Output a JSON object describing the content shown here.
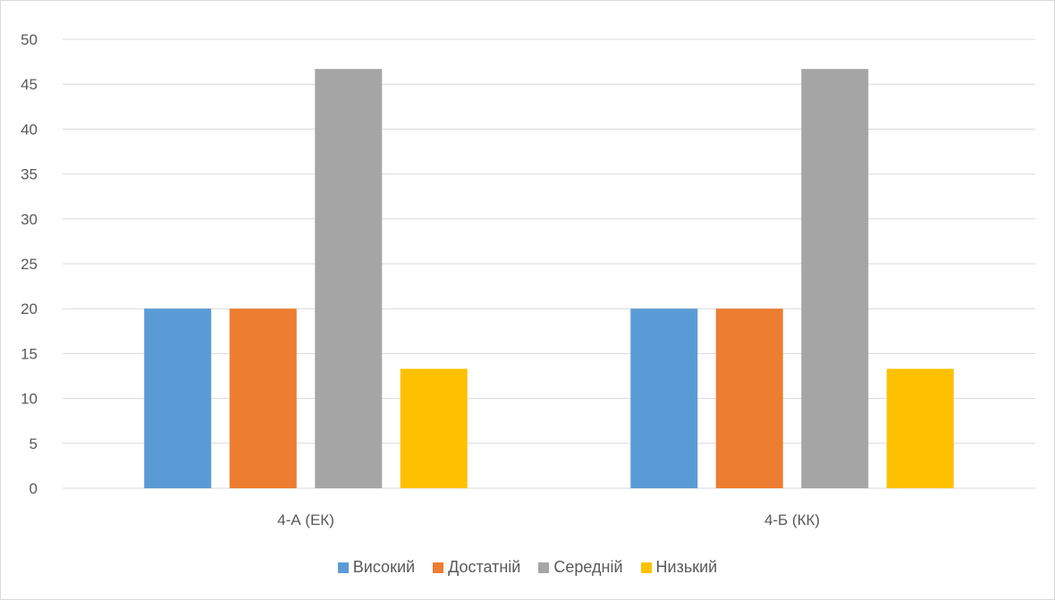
{
  "chart_data": {
    "type": "bar",
    "categories": [
      "4-А (ЕК)",
      "4-Б (КК)"
    ],
    "series": [
      {
        "name": "Високий",
        "values": [
          20,
          20
        ],
        "color": "#5b9bd5"
      },
      {
        "name": "Достатній",
        "values": [
          20,
          20
        ],
        "color": "#ed7d31"
      },
      {
        "name": "Середній",
        "values": [
          46.7,
          46.7
        ],
        "color": "#a5a5a5"
      },
      {
        "name": "Низький",
        "values": [
          13.3,
          13.3
        ],
        "color": "#ffc000"
      }
    ],
    "title": "",
    "xlabel": "",
    "ylabel": "",
    "ylim": [
      0,
      50
    ],
    "yticks": [
      "0",
      "5",
      "10",
      "15",
      "20",
      "25",
      "30",
      "35",
      "40",
      "45",
      "50"
    ],
    "grid": true,
    "legend_position": "bottom",
    "gridline_color": "#d9d9d9"
  }
}
